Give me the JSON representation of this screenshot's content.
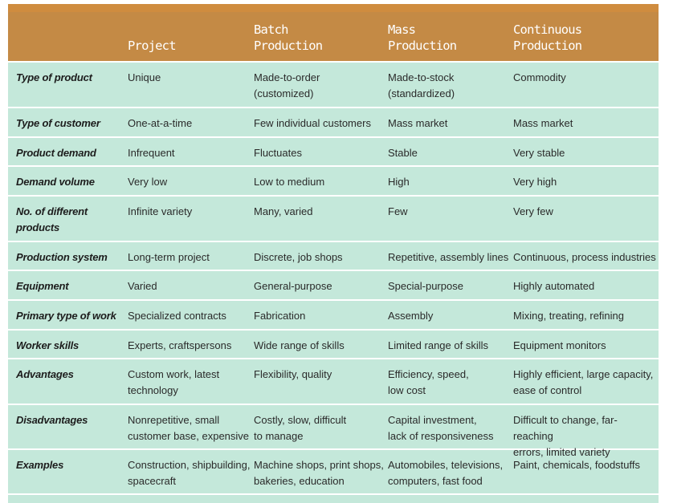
{
  "table": {
    "headers": [
      "",
      "Project",
      "Batch\nProduction",
      "Mass\nProduction",
      "Continuous\nProduction"
    ],
    "rows": [
      {
        "label": "Type of product",
        "cells": [
          "Unique",
          "Made-to-order\n(customized)",
          "Made-to-stock\n(standardized)",
          "Commodity"
        ]
      },
      {
        "label": "Type of customer",
        "cells": [
          "One-at-a-time",
          "Few individual customers",
          "Mass market",
          "Mass market"
        ]
      },
      {
        "label": "Product demand",
        "cells": [
          "Infrequent",
          "Fluctuates",
          "Stable",
          "Very stable"
        ]
      },
      {
        "label": "Demand volume",
        "cells": [
          "Very low",
          "Low to medium",
          "High",
          "Very high"
        ]
      },
      {
        "label": "No. of different\nproducts",
        "cells": [
          "Infinite variety",
          "Many, varied",
          "Few",
          "Very few"
        ]
      },
      {
        "label": "Production system",
        "cells": [
          "Long-term project",
          "Discrete, job shops",
          "Repetitive, assembly lines",
          "Continuous, process industries"
        ]
      },
      {
        "label": "Equipment",
        "cells": [
          "Varied",
          "General-purpose",
          "Special-purpose",
          "Highly automated"
        ]
      },
      {
        "label": "Primary type of work",
        "cells": [
          "Specialized contracts",
          "Fabrication",
          "Assembly",
          "Mixing, treating, refining"
        ]
      },
      {
        "label": "Worker skills",
        "cells": [
          "Experts, craftspersons",
          "Wide range of skills",
          "Limited range of skills",
          "Equipment monitors"
        ]
      },
      {
        "label": "Advantages",
        "cells": [
          "Custom work, latest\ntechnology",
          "Flexibility, quality",
          "Efficiency, speed,\nlow cost",
          "Highly efficient, large capacity,\nease of control"
        ]
      },
      {
        "label": "Disadvantages",
        "cells": [
          "Nonrepetitive, small\ncustomer base, expensive",
          "Costly, slow, difficult\nto manage",
          "Capital investment,\nlack of responsiveness",
          "Difficult to change, far-reaching\nerrors, limited variety"
        ]
      },
      {
        "label": "Examples",
        "cells": [
          "Construction, shipbuilding,\nspacecraft",
          "Machine shops, print shops,\nbakeries, education",
          "Automobiles, televisions,\ncomputers, fast food",
          "Paint, chemicals, foodstuffs"
        ]
      }
    ]
  },
  "colors": {
    "header_bg": "#c48a45",
    "top_strip": "#cf8c3f",
    "body_bg": "#c4e8da",
    "row_divider": "#ffffff"
  }
}
